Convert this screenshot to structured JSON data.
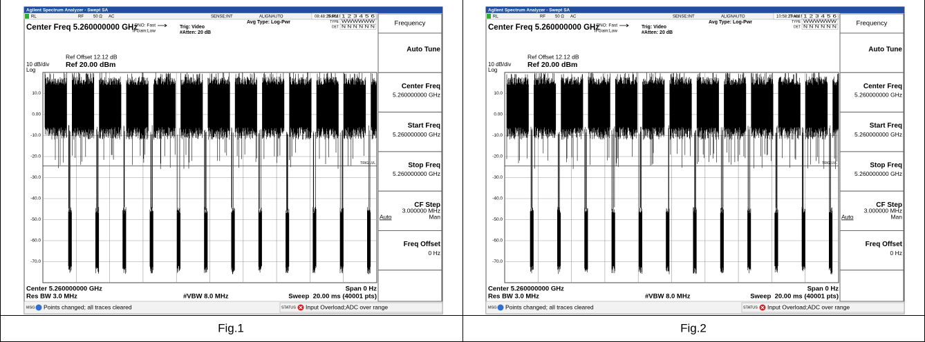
{
  "panels": [
    {
      "title_bar": "Agilent Spectrum Analyzer - Swept SA",
      "status_row": [
        "RL",
        "RF",
        "50 Ω",
        "AC",
        "SENSE:INT",
        "ALIGNAUTO",
        "08:48:25 PM May 27, 2023"
      ],
      "center_freq": "Center Freq 5.260000000 GHz",
      "pno": "PNO: Fast",
      "ifgain": "IFGain:Low",
      "trig": "Trig: Video",
      "atten": "#Atten: 20 dB",
      "avg_type": "Avg Type: Log-Pwr",
      "trace_labels": [
        "TRACE",
        "TYPE",
        "DET"
      ],
      "trace_values": [
        "1 2 3 4 5 6",
        "WWWWWW",
        "N N N N N N"
      ],
      "ref_offset": "Ref Offset 12.12 dB",
      "scale": "10 dB/div",
      "ref_level": "Ref 20.00 dBm",
      "log": "Log",
      "y_labels": [
        "10.0",
        "0.00",
        "-10.0",
        "-20.0",
        "-30.0",
        "-40.0",
        "-50.0",
        "-60.0",
        "-70.0"
      ],
      "trig_lvl": "TRIG LVL",
      "center": "Center 5.260000000 GHz",
      "span": "Span 0 Hz",
      "res_bw": "Res BW 3.0 MHz",
      "vbw": "#VBW 8.0 MHz",
      "sweep": "Sweep  20.00 ms (40001 pts)",
      "msg_label": "MSG",
      "msg": "Points changed; all traces cleared",
      "status_label": "STATUS",
      "status": "Input Overload;ADC over range",
      "menu": {
        "title": "Frequency",
        "buttons": [
          {
            "label": "Auto Tune"
          },
          {
            "label": "Center Freq",
            "value": "5.260000000 GHz"
          },
          {
            "label": "Start Freq",
            "value": "5.260000000 GHz"
          },
          {
            "label": "Stop Freq",
            "value": "5.260000000 GHz"
          },
          {
            "label": "CF Step",
            "value": "3.000000 MHz",
            "mode": [
              "Auto",
              "Man"
            ]
          },
          {
            "label": "Freq Offset",
            "value": "0 Hz"
          }
        ]
      },
      "caption": "Fig.1"
    },
    {
      "title_bar": "Agilent Spectrum Analyzer - Swept SA",
      "status_row": [
        "RL",
        "RF",
        "50 Ω",
        "AC",
        "SENSE:INT",
        "ALIGNAUTO",
        "10:58:27 AM May 24, 2023"
      ],
      "center_freq": "Center Freq 5.260000000 GHz",
      "pno": "PNO: Fast",
      "ifgain": "IFGain:Low",
      "trig": "Trig: Video",
      "atten": "#Atten: 20 dB",
      "avg_type": "Avg Type: Log-Pwr",
      "trace_labels": [
        "TRACE",
        "TYPE",
        "DET"
      ],
      "trace_values": [
        "1 2 3 4 5 6",
        "WWWWWW",
        "N N N N N N"
      ],
      "ref_offset": "Ref Offset 12.12 dB",
      "scale": "10 dB/div",
      "ref_level": "Ref 20.00 dBm",
      "log": "Log",
      "y_labels": [
        "10.0",
        "0.00",
        "-10.0",
        "-20.0",
        "-30.0",
        "-40.0",
        "-50.0",
        "-60.0",
        "-70.0"
      ],
      "trig_lvl": "TRIG LVL",
      "center": "Center 5.260000000 GHz",
      "span": "Span 0 Hz",
      "res_bw": "Res BW 3.0 MHz",
      "vbw": "#VBW 8.0 MHz",
      "sweep": "Sweep  20.00 ms (40001 pts)",
      "msg_label": "MSG",
      "msg": "Points changed; all traces cleared",
      "status_label": "STATUS",
      "status": "Input Overload;ADC over range",
      "menu": {
        "title": "Frequency",
        "buttons": [
          {
            "label": "Auto Tune"
          },
          {
            "label": "Center Freq",
            "value": "5.260000000 GHz"
          },
          {
            "label": "Start Freq",
            "value": "5.260000000 GHz"
          },
          {
            "label": "Stop Freq",
            "value": "5.260000000 GHz"
          },
          {
            "label": "CF Step",
            "value": "3.000000 MHz",
            "mode": [
              "Auto",
              "Man"
            ]
          },
          {
            "label": "Freq Offset",
            "value": "0 Hz"
          }
        ]
      },
      "caption": "Fig.2"
    }
  ]
}
